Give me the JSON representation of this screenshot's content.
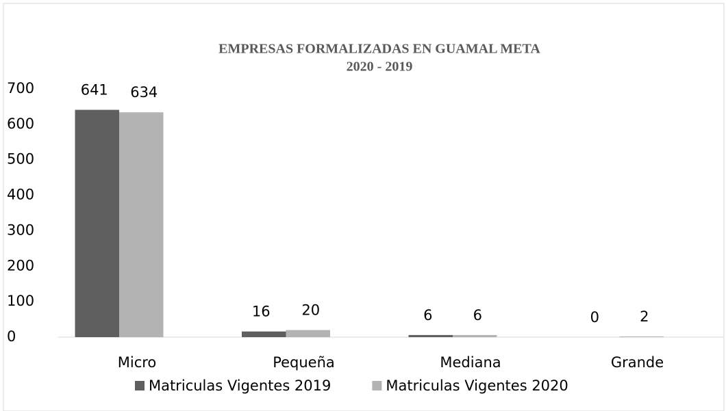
{
  "chart_data": {
    "type": "bar",
    "title": "EMPRESAS FORMALIZADAS EN GUAMAL META",
    "subtitle": "2020 - 2019",
    "categories": [
      "Micro",
      "Pequeña",
      "Mediana",
      "Grande"
    ],
    "series": [
      {
        "name": "Matriculas Vigentes 2019",
        "color": "#5f5f5f",
        "values": [
          641,
          16,
          6,
          0
        ]
      },
      {
        "name": "Matriculas Vigentes 2020",
        "color": "#b3b3b3",
        "values": [
          634,
          20,
          6,
          2
        ]
      }
    ],
    "ylim": [
      0,
      700
    ],
    "yticks": [
      0,
      100,
      200,
      300,
      400,
      500,
      600,
      700
    ],
    "grid": false,
    "legend": "bottom"
  }
}
